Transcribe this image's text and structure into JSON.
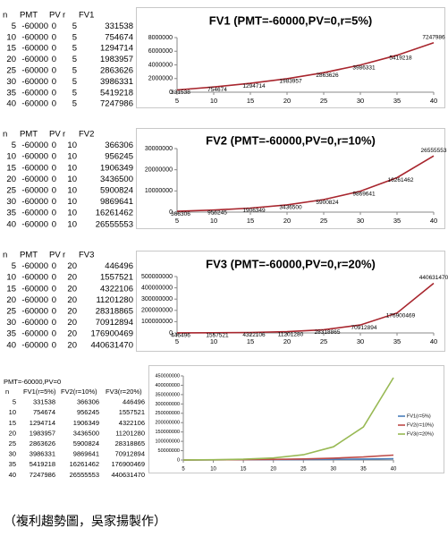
{
  "chart_data": [
    {
      "type": "line",
      "title": "FV1 (PMT=-60000,PV=0,r=5%)",
      "x": [
        5,
        10,
        15,
        20,
        25,
        30,
        35,
        40
      ],
      "xlim": [
        5,
        40
      ],
      "xticks": [
        5,
        10,
        15,
        20,
        25,
        30,
        35,
        40
      ],
      "ylim": [
        0,
        8000000
      ],
      "yticks": [
        0,
        2000000,
        4000000,
        6000000,
        8000000
      ],
      "data_labels": true,
      "series": [
        {
          "color": "#a8262e",
          "values": [
            331538,
            754674,
            1294714,
            1983957,
            2863626,
            3986331,
            5419218,
            7247986
          ]
        }
      ]
    },
    {
      "type": "line",
      "title": "FV2 (PMT=-60000,PV=0,r=10%)",
      "x": [
        5,
        10,
        15,
        20,
        25,
        30,
        35,
        40
      ],
      "xlim": [
        5,
        40
      ],
      "xticks": [
        5,
        10,
        15,
        20,
        25,
        30,
        35,
        40
      ],
      "ylim": [
        0,
        30000000
      ],
      "yticks": [
        0,
        10000000,
        20000000,
        30000000
      ],
      "data_labels": true,
      "series": [
        {
          "color": "#a8262e",
          "values": [
            366306,
            956245,
            1906349,
            3436500,
            5900824,
            9869641,
            16261462,
            26555553
          ]
        }
      ]
    },
    {
      "type": "line",
      "title": "FV3 (PMT=-60000,PV=0,r=20%)",
      "x": [
        5,
        10,
        15,
        20,
        25,
        30,
        35,
        40
      ],
      "xlim": [
        5,
        40
      ],
      "xticks": [
        5,
        10,
        15,
        20,
        25,
        30,
        35,
        40
      ],
      "ylim": [
        0,
        500000000
      ],
      "yticks": [
        0,
        100000000,
        200000000,
        300000000,
        400000000,
        500000000
      ],
      "data_labels": true,
      "series": [
        {
          "color": "#a8262e",
          "values": [
            446496,
            1557521,
            4322106,
            11201280,
            28318865,
            70912894,
            176900469,
            440631470
          ]
        }
      ]
    },
    {
      "type": "line",
      "x": [
        5,
        10,
        15,
        20,
        25,
        30,
        35,
        40
      ],
      "xlim": [
        5,
        40
      ],
      "xticks": [
        5,
        10,
        15,
        20,
        25,
        30,
        35,
        40
      ],
      "ylim": [
        0,
        450000000
      ],
      "yticks": [
        0,
        50000000,
        100000000,
        150000000,
        200000000,
        250000000,
        300000000,
        350000000,
        400000000,
        450000000
      ],
      "legend": "right",
      "series": [
        {
          "name": "FV1(r=5%)",
          "color": "#4a7ebb",
          "values": [
            331538,
            754674,
            1294714,
            1983957,
            2863626,
            3986331,
            5419218,
            7247986
          ]
        },
        {
          "name": "FV2(r=10%)",
          "color": "#be4b48",
          "values": [
            366306,
            956245,
            1906349,
            3436500,
            5900824,
            9869641,
            16261462,
            26555553
          ]
        },
        {
          "name": "FV3(r=20%)",
          "color": "#98b954",
          "values": [
            446496,
            1557521,
            4322106,
            11201280,
            28318865,
            70912894,
            176900469,
            440631470
          ]
        }
      ]
    }
  ],
  "tables": [
    {
      "headers": [
        "n",
        "PMT",
        "PV",
        "r",
        "FV1"
      ],
      "rows": [
        [
          5,
          -60000,
          0,
          5,
          331538
        ],
        [
          10,
          -60000,
          0,
          5,
          754674
        ],
        [
          15,
          -60000,
          0,
          5,
          1294714
        ],
        [
          20,
          -60000,
          0,
          5,
          1983957
        ],
        [
          25,
          -60000,
          0,
          5,
          2863626
        ],
        [
          30,
          -60000,
          0,
          5,
          3986331
        ],
        [
          35,
          -60000,
          0,
          5,
          5419218
        ],
        [
          40,
          -60000,
          0,
          5,
          7247986
        ]
      ]
    },
    {
      "headers": [
        "n",
        "PMT",
        "PV",
        "r",
        "FV2"
      ],
      "rows": [
        [
          5,
          -60000,
          0,
          10,
          366306
        ],
        [
          10,
          -60000,
          0,
          10,
          956245
        ],
        [
          15,
          -60000,
          0,
          10,
          1906349
        ],
        [
          20,
          -60000,
          0,
          10,
          3436500
        ],
        [
          25,
          -60000,
          0,
          10,
          5900824
        ],
        [
          30,
          -60000,
          0,
          10,
          9869641
        ],
        [
          35,
          -60000,
          0,
          10,
          16261462
        ],
        [
          40,
          -60000,
          0,
          10,
          26555553
        ]
      ]
    },
    {
      "headers": [
        "n",
        "PMT",
        "PV",
        "r",
        "FV3"
      ],
      "rows": [
        [
          5,
          -60000,
          0,
          20,
          446496
        ],
        [
          10,
          -60000,
          0,
          20,
          1557521
        ],
        [
          15,
          -60000,
          0,
          20,
          4322106
        ],
        [
          20,
          -60000,
          0,
          20,
          11201280
        ],
        [
          25,
          -60000,
          0,
          20,
          28318865
        ],
        [
          30,
          -60000,
          0,
          20,
          70912894
        ],
        [
          35,
          -60000,
          0,
          20,
          176900469
        ],
        [
          40,
          -60000,
          0,
          20,
          440631470
        ]
      ]
    },
    {
      "title": "PMT=-60000,PV=0",
      "headers": [
        "n",
        "FV1(r=5%)",
        "FV2(r=10%)",
        "FV3(r=20%)"
      ],
      "rows": [
        [
          5,
          331538,
          366306,
          446496
        ],
        [
          10,
          754674,
          956245,
          1557521
        ],
        [
          15,
          1294714,
          1906349,
          4322106
        ],
        [
          20,
          1983957,
          3436500,
          11201280
        ],
        [
          25,
          2863626,
          5900824,
          28318865
        ],
        [
          30,
          3986331,
          9869641,
          70912894
        ],
        [
          35,
          5419218,
          16261462,
          176900469
        ],
        [
          40,
          7247986,
          26555553,
          440631470
        ]
      ]
    }
  ],
  "caption": "（複利趨勢圖，吳家揚製作）"
}
